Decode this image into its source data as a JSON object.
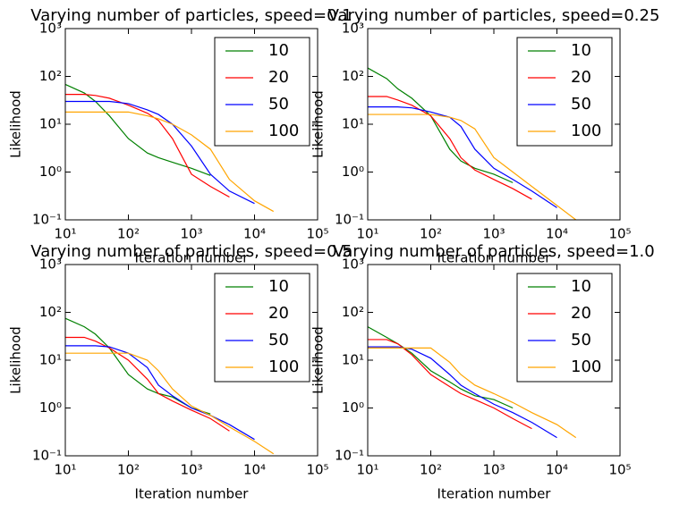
{
  "chart_data": [
    {
      "type": "line",
      "title": "Varying number of particles, speed=0.1",
      "xlabel": "Iteration number",
      "ylabel": "Likelihood",
      "xscale": "log",
      "yscale": "log",
      "legend": "upper right",
      "x": [
        10,
        20,
        30,
        50,
        100,
        200,
        300,
        500,
        1000,
        2000,
        4000,
        10000,
        20000
      ],
      "series": [
        {
          "name": "10",
          "color": "#008000",
          "values": [
            68,
            45,
            30,
            15,
            5,
            2.5,
            2,
            1.6,
            1.2,
            0.85,
            null,
            null,
            null
          ]
        },
        {
          "name": "20",
          "color": "#ff0000",
          "values": [
            42,
            42,
            40,
            35,
            25,
            17,
            12,
            5,
            0.9,
            0.5,
            0.3,
            null,
            null
          ]
        },
        {
          "name": "50",
          "color": "#0000ff",
          "values": [
            30,
            30,
            30,
            30,
            27,
            20,
            16,
            10,
            3.5,
            0.9,
            0.4,
            0.22,
            null
          ]
        },
        {
          "name": "100",
          "color": "#ffa500",
          "values": [
            18,
            18,
            18,
            18,
            18,
            15,
            13,
            10,
            6,
            3,
            0.7,
            0.25,
            0.15
          ]
        }
      ],
      "xlim": [
        10,
        100000
      ],
      "ylim": [
        0.1,
        1000
      ],
      "xticks": [
        {
          "value": 10,
          "label": "10¹"
        },
        {
          "value": 100,
          "label": "10²"
        },
        {
          "value": 1000,
          "label": "10³"
        },
        {
          "value": 10000,
          "label": "10⁴"
        },
        {
          "value": 100000,
          "label": "10⁵"
        }
      ],
      "yticks": [
        {
          "value": 0.1,
          "label": "10⁻¹"
        },
        {
          "value": 1,
          "label": "10⁰"
        },
        {
          "value": 10,
          "label": "10¹"
        },
        {
          "value": 100,
          "label": "10²"
        },
        {
          "value": 1000,
          "label": "10³"
        }
      ]
    },
    {
      "type": "line",
      "title": "Varying number of particles, speed=0.25",
      "xlabel": "Iteration number",
      "ylabel": "Likelihood",
      "xscale": "log",
      "yscale": "log",
      "legend": "upper right",
      "x": [
        10,
        20,
        30,
        50,
        100,
        200,
        300,
        500,
        1000,
        2000,
        4000,
        10000,
        20000
      ],
      "series": [
        {
          "name": "10",
          "color": "#008000",
          "values": [
            150,
            90,
            55,
            35,
            15,
            3,
            1.7,
            1.2,
            0.9,
            0.6,
            null,
            null,
            null
          ]
        },
        {
          "name": "20",
          "color": "#ff0000",
          "values": [
            38,
            38,
            32,
            25,
            15,
            5,
            2,
            1.1,
            0.7,
            0.45,
            0.27,
            null,
            null
          ]
        },
        {
          "name": "50",
          "color": "#0000ff",
          "values": [
            23,
            23,
            23,
            22,
            18,
            14,
            9,
            3,
            1.2,
            0.7,
            0.4,
            0.18,
            null
          ]
        },
        {
          "name": "100",
          "color": "#ffa500",
          "values": [
            16,
            16,
            16,
            16,
            16,
            14,
            12,
            8,
            2,
            1,
            0.5,
            0.2,
            0.1
          ]
        }
      ],
      "xlim": [
        10,
        100000
      ],
      "ylim": [
        0.1,
        1000
      ],
      "xticks": [
        {
          "value": 10,
          "label": "10¹"
        },
        {
          "value": 100,
          "label": "10²"
        },
        {
          "value": 1000,
          "label": "10³"
        },
        {
          "value": 10000,
          "label": "10⁴"
        },
        {
          "value": 100000,
          "label": "10⁵"
        }
      ],
      "yticks": [
        {
          "value": 0.1,
          "label": "10⁻¹"
        },
        {
          "value": 1,
          "label": "10⁰"
        },
        {
          "value": 10,
          "label": "10¹"
        },
        {
          "value": 100,
          "label": "10²"
        },
        {
          "value": 1000,
          "label": "10³"
        }
      ]
    },
    {
      "type": "line",
      "title": "Varying number of particles, speed=0.5",
      "xlabel": "Iteration number",
      "ylabel": "Likelihood",
      "xscale": "log",
      "yscale": "log",
      "legend": "upper right",
      "x": [
        10,
        20,
        30,
        50,
        100,
        200,
        300,
        500,
        1000,
        2000,
        4000,
        10000,
        20000
      ],
      "series": [
        {
          "name": "10",
          "color": "#008000",
          "values": [
            75,
            50,
            35,
            18,
            5,
            2.5,
            2,
            1.7,
            1,
            0.75,
            null,
            null,
            null
          ]
        },
        {
          "name": "20",
          "color": "#ff0000",
          "values": [
            30,
            30,
            25,
            18,
            10,
            4,
            2,
            1.4,
            0.9,
            0.6,
            0.33,
            null,
            null
          ]
        },
        {
          "name": "50",
          "color": "#0000ff",
          "values": [
            20,
            20,
            20,
            19,
            14,
            7,
            3,
            1.8,
            1,
            0.7,
            0.45,
            0.22,
            null
          ]
        },
        {
          "name": "100",
          "color": "#ffa500",
          "values": [
            14,
            14,
            14,
            14,
            14,
            10,
            6,
            2.5,
            1.1,
            0.7,
            0.4,
            0.2,
            0.11
          ]
        }
      ],
      "xlim": [
        10,
        100000
      ],
      "ylim": [
        0.1,
        1000
      ],
      "xticks": [
        {
          "value": 10,
          "label": "10¹"
        },
        {
          "value": 100,
          "label": "10²"
        },
        {
          "value": 1000,
          "label": "10³"
        },
        {
          "value": 10000,
          "label": "10⁴"
        },
        {
          "value": 100000,
          "label": "10⁵"
        }
      ],
      "yticks": [
        {
          "value": 0.1,
          "label": "10⁻¹"
        },
        {
          "value": 1,
          "label": "10⁰"
        },
        {
          "value": 10,
          "label": "10¹"
        },
        {
          "value": 100,
          "label": "10²"
        },
        {
          "value": 1000,
          "label": "10³"
        }
      ]
    },
    {
      "type": "line",
      "title": "Varying number of particles, speed=1.0",
      "xlabel": "Iteration number",
      "ylabel": "Likelihood",
      "xscale": "log",
      "yscale": "log",
      "legend": "upper right",
      "x": [
        10,
        20,
        30,
        50,
        100,
        200,
        300,
        500,
        1000,
        2000,
        4000,
        10000,
        20000
      ],
      "series": [
        {
          "name": "10",
          "color": "#008000",
          "values": [
            50,
            30,
            22,
            14,
            6,
            3.5,
            2.5,
            1.8,
            1.5,
            1,
            null,
            null,
            null
          ]
        },
        {
          "name": "20",
          "color": "#ff0000",
          "values": [
            27,
            27,
            22,
            13,
            5,
            2.8,
            2,
            1.5,
            1,
            0.6,
            0.37,
            null,
            null
          ]
        },
        {
          "name": "50",
          "color": "#0000ff",
          "values": [
            19,
            19,
            19,
            17,
            11,
            5,
            3,
            2,
            1.2,
            0.8,
            0.5,
            0.24,
            null
          ]
        },
        {
          "name": "100",
          "color": "#ffa500",
          "values": [
            18,
            18,
            18,
            18,
            18,
            9,
            5,
            3,
            2,
            1.3,
            0.8,
            0.45,
            0.24
          ]
        }
      ],
      "xlim": [
        10,
        100000
      ],
      "ylim": [
        0.1,
        1000
      ],
      "xticks": [
        {
          "value": 10,
          "label": "10¹"
        },
        {
          "value": 100,
          "label": "10²"
        },
        {
          "value": 1000,
          "label": "10³"
        },
        {
          "value": 10000,
          "label": "10⁴"
        },
        {
          "value": 100000,
          "label": "10⁵"
        }
      ],
      "yticks": [
        {
          "value": 0.1,
          "label": "10⁻¹"
        },
        {
          "value": 1,
          "label": "10⁰"
        },
        {
          "value": 10,
          "label": "10¹"
        },
        {
          "value": 100,
          "label": "10²"
        },
        {
          "value": 1000,
          "label": "10³"
        }
      ]
    }
  ]
}
